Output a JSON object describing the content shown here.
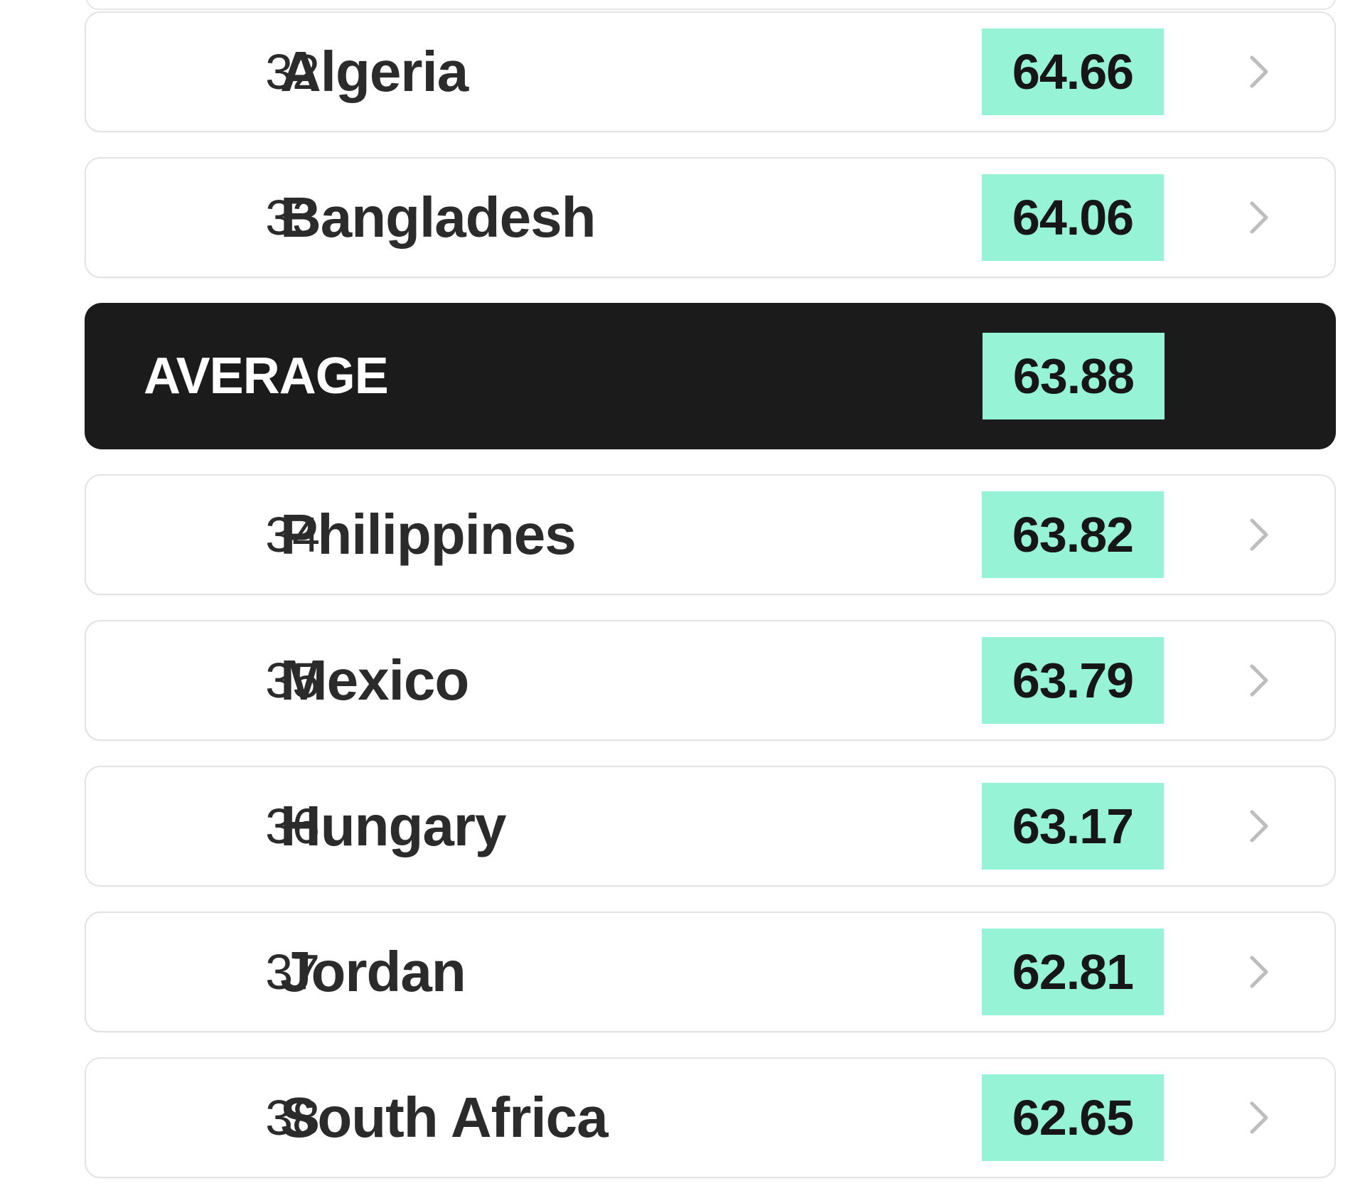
{
  "rows_before": [
    {
      "rank": "32",
      "country": "Algeria",
      "score": "64.66"
    },
    {
      "rank": "33",
      "country": "Bangladesh",
      "score": "64.06"
    }
  ],
  "average": {
    "label": "AVERAGE",
    "score": "63.88"
  },
  "rows_after": [
    {
      "rank": "34",
      "country": "Philippines",
      "score": "63.82"
    },
    {
      "rank": "35",
      "country": "Mexico",
      "score": "63.79"
    },
    {
      "rank": "36",
      "country": "Hungary",
      "score": "63.17"
    },
    {
      "rank": "37",
      "country": "Jordan",
      "score": "62.81"
    },
    {
      "rank": "38",
      "country": "South Africa",
      "score": "62.65"
    }
  ],
  "colors": {
    "score_badge": "#97f3d6",
    "average_background": "#1b1b1b",
    "chevron": "#bdbdbd"
  },
  "icons": {
    "row_action": "chevron-right-icon"
  }
}
